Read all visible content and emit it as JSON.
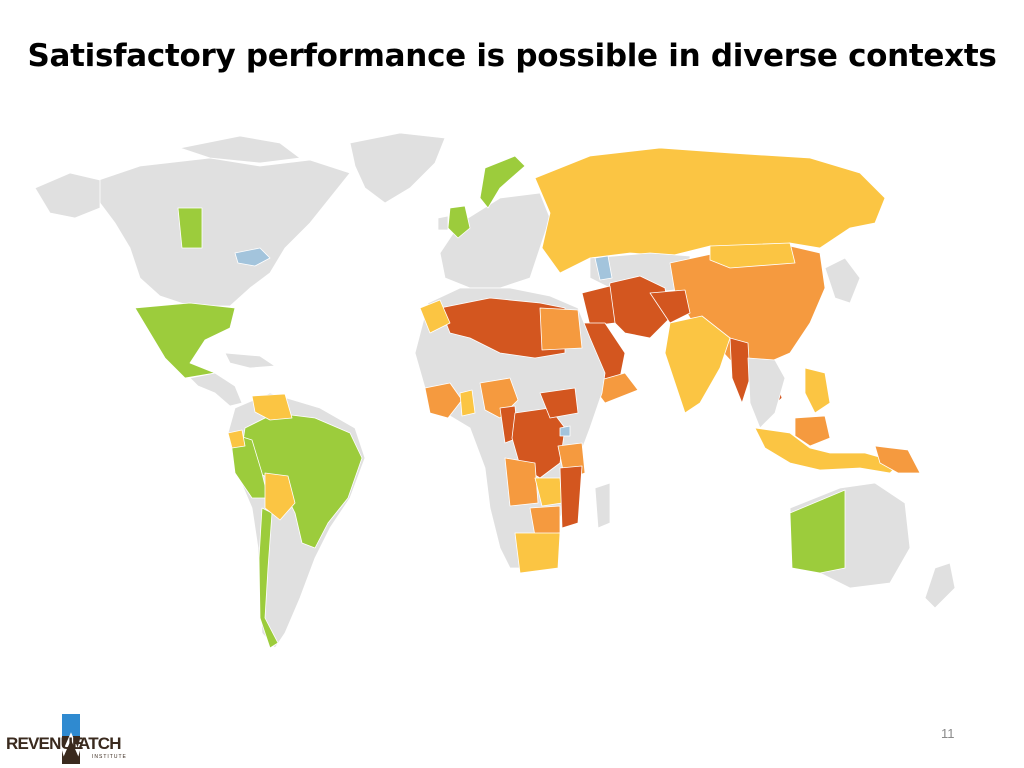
{
  "slide": {
    "title": "Satisfactory performance is possible in diverse contexts",
    "page_number": "11"
  },
  "logo": {
    "word_left": "REVENUE",
    "word_right": "ATCH",
    "subtitle": "INSTITUTE"
  },
  "map_legend_colors": {
    "satisfactory": "#9ccc3c",
    "partial": "#fbc543",
    "weak": "#f59a3f",
    "failing": "#d3561f",
    "not_assessed": "#e0e0e0",
    "water": "#a3c4dc"
  }
}
